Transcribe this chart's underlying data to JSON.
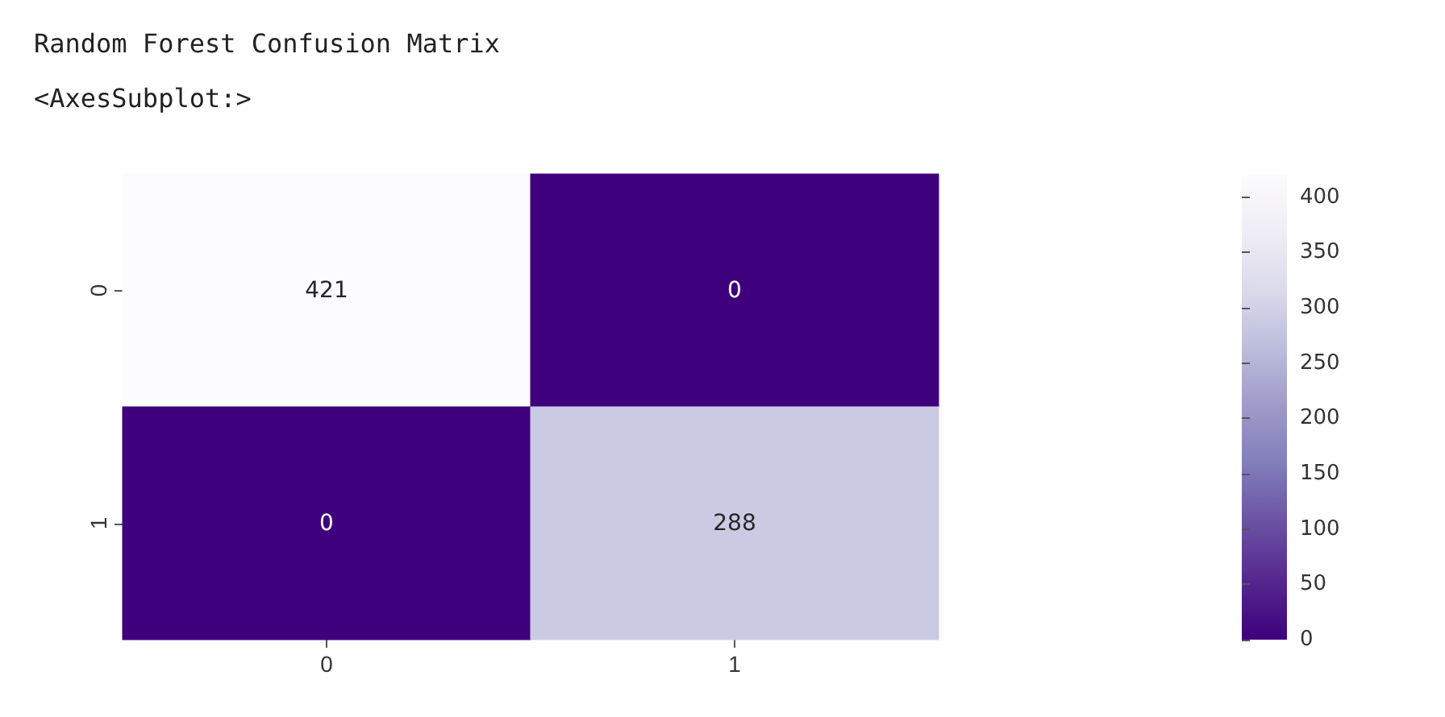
{
  "chart_data": {
    "type": "heatmap",
    "title": "Random Forest Confusion Matrix",
    "subtitle": "<AxesSubplot:>",
    "categories": [
      "0",
      "1"
    ],
    "y_categories": [
      "0",
      "1"
    ],
    "cells": [
      [
        421,
        0
      ],
      [
        0,
        288
      ]
    ],
    "clim": [
      0,
      421
    ],
    "cticks": [
      0,
      50,
      100,
      150,
      200,
      250,
      300,
      350,
      400
    ],
    "data_labels": true
  }
}
